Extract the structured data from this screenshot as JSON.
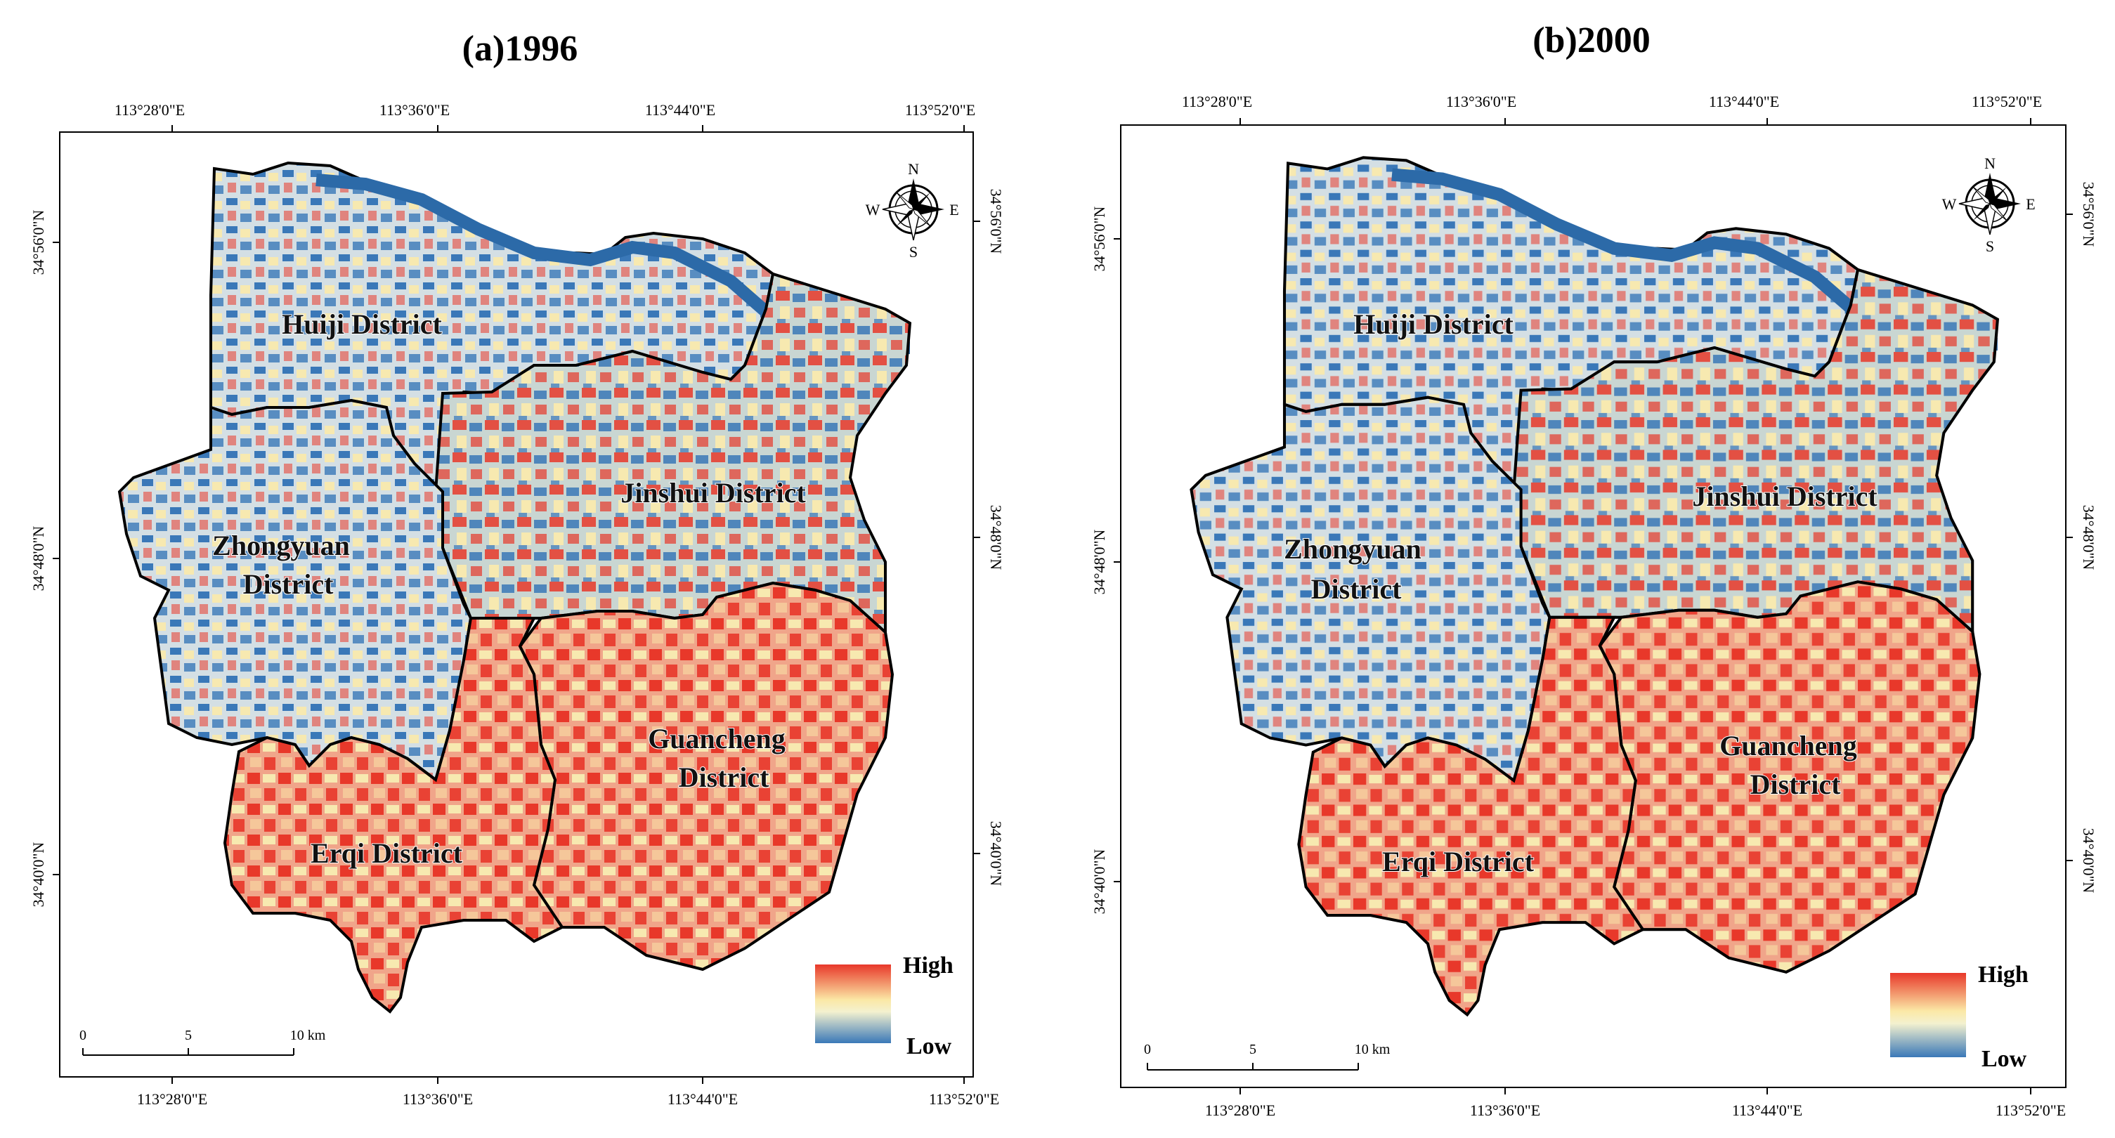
{
  "panels": [
    {
      "title": "(a)1996",
      "lon_ticks": [
        "113°28'0\"E",
        "113°36'0\"E",
        "113°44'0\"E",
        "113°52'0\"E"
      ],
      "lat_ticks": [
        "34°56'0\"N",
        "34°48'0\"N",
        "34°40'0\"N"
      ],
      "districts": [
        "Huiji District",
        "Jinshui District",
        "Zhongyuan",
        "District",
        "Guancheng",
        "District",
        "Erqi District"
      ],
      "legend": {
        "high": "High",
        "low": "Low"
      },
      "scale": {
        "labels": [
          "0",
          "5",
          "10 km"
        ]
      },
      "compass": {
        "n": "N",
        "s": "S",
        "e": "E",
        "w": "W"
      }
    },
    {
      "title": "(b)2000",
      "lon_ticks": [
        "113°28'0\"E",
        "113°36'0\"E",
        "113°44'0\"E",
        "113°52'0\"E"
      ],
      "lat_ticks": [
        "34°56'0\"N",
        "34°48'0\"N",
        "34°40'0\"N"
      ],
      "districts": [
        "Huiji District",
        "Jinshui District",
        "Zhongyuan",
        "District",
        "Guancheng",
        "District",
        "Erqi District"
      ],
      "legend": {
        "high": "High",
        "low": "Low"
      },
      "scale": {
        "labels": [
          "0",
          "5",
          "10 km"
        ]
      },
      "compass": {
        "n": "N",
        "s": "S",
        "e": "E",
        "w": "W"
      }
    }
  ],
  "colors": {
    "high": "#e8382a",
    "mid": "#f7f3c4",
    "low": "#3a78b8",
    "river": "#2c6aa8",
    "boundary": "#000000"
  }
}
